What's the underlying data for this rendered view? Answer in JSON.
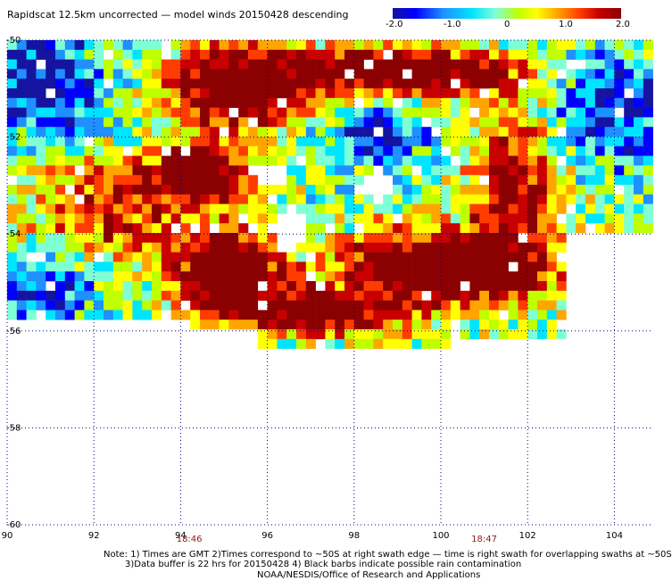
{
  "title": "Rapidscat 12.5km uncorrected — model winds 20150428 descending",
  "colorbar": {
    "labels": [
      "-2.0",
      "-1.0",
      "0",
      "1.0",
      "2.0"
    ],
    "range": [
      -2.0,
      2.0
    ],
    "colormap": [
      "#1414a0",
      "#0000ff",
      "#1e90ff",
      "#00e5ff",
      "#7fffd4",
      "#bfff00",
      "#ffff00",
      "#ffa500",
      "#ff3c00",
      "#c80000",
      "#8b0000"
    ]
  },
  "axes": {
    "x_ticks": [
      "90",
      "92",
      "94",
      "96",
      "98",
      "100",
      "102",
      "104"
    ],
    "y_ticks": [
      "-50",
      "-52",
      "-54",
      "-56",
      "-58",
      "-60"
    ],
    "x_range": [
      90,
      105
    ],
    "y_range": [
      -60,
      -50
    ],
    "grid": "dotted"
  },
  "time_labels": [
    {
      "text": "18:46",
      "lon": 94.2
    },
    {
      "text": "18:47",
      "lon": 101.0
    }
  ],
  "notes": {
    "line1": "Note: 1) Times are GMT 2)Times correspond to ~50S at right swath edge — time is right swath for overlapping swaths at ~50S",
    "line2": "3)Data buffer is 22 hrs for 20150428 4) Black barbs indicate possible rain contamination",
    "line3": "NOAA/NESDIS/Office of Research and Applications"
  },
  "colors": {
    "land_missing": "#ffffff",
    "dark_red": "#8b0000",
    "grid": "#000080"
  }
}
